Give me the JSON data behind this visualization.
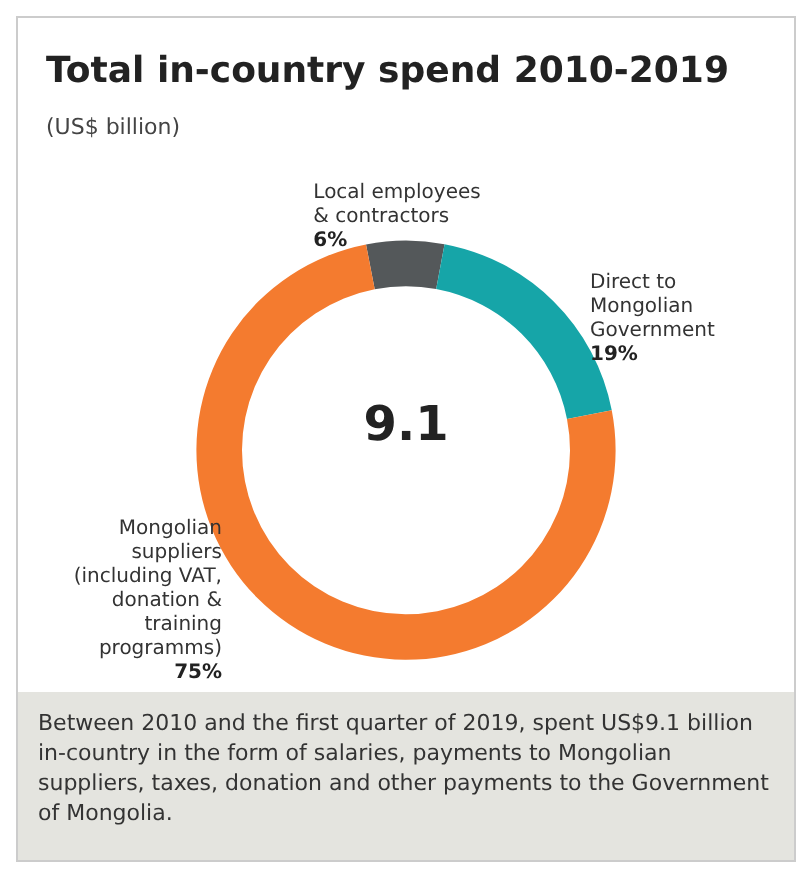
{
  "chart_data": {
    "type": "donut",
    "title": "Total in-country spend 2010-2019",
    "subtitle": "(US$ billion)",
    "categories": [
      "Local employees & contractors",
      "Direct to Mongolian Government",
      "Mongolian suppliers (including VAT, donation & training programms)"
    ],
    "values": [
      6,
      19,
      75
    ],
    "value_labels": [
      "6%",
      "19%",
      "75%"
    ],
    "colors": [
      "#54585a",
      "#16a5a8",
      "#f47b2f"
    ],
    "annotations": [
      "9.1",
      "Between 2010 and the first quarter of 2019, spent US$9.1 billion in-country in the form of salaries, payments to Mongolian suppliers, taxes, donation and other payments to the Government of Mongolia."
    ],
    "legend": false
  }
}
